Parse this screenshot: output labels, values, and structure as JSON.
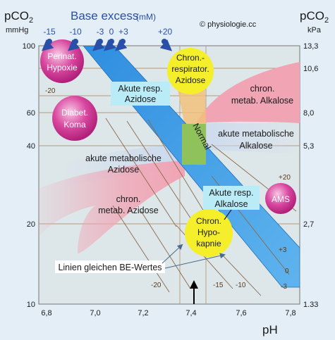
{
  "axes": {
    "left_title_pco2": "pCO",
    "left_title_sub": "2",
    "left_unit": "mmHg",
    "right_title_pco2": "pCO",
    "right_title_sub": "2",
    "right_unit": "kPa",
    "x_title": "pH",
    "left_ticks": [
      "100",
      "60",
      "40",
      "20",
      "10"
    ],
    "right_ticks": [
      "13,3",
      "10,6",
      "8,0",
      "5,3",
      "2,7",
      "1.33"
    ],
    "x_ticks": [
      "6,8",
      "7,0",
      "7,2",
      "7,4",
      "7,6",
      "7,8"
    ]
  },
  "header": {
    "base_excess_title": "Base excess",
    "base_excess_unit": "(mM)",
    "copyright": "© physiologie.cc",
    "be_top_values": [
      "-15",
      "-10",
      "-3",
      "0",
      "+3",
      "+20"
    ]
  },
  "regions": {
    "normal": "Normal",
    "acute_resp_acidosis_l1": "Akute resp.",
    "acute_resp_acidosis_l2": "Azidose",
    "chronic_resp_acidosis_l1": "Chron.-",
    "chronic_resp_acidosis_l2": "respirator.",
    "chronic_resp_acidosis_l3": "Azidose",
    "chronic_metab_alkalosis_l1": "chron.",
    "chronic_metab_alkalosis_l2": "metab. Alkalose",
    "acute_metab_alkalosis_l1": "akute metabolische",
    "acute_metab_alkalosis_l2": "Alkalose",
    "acute_metab_acidosis_l1": "akute metabolische",
    "acute_metab_acidosis_l2": "Azidose",
    "chronic_metab_acidosis_l1": "chron.",
    "chronic_metab_acidosis_l2": "metab. Azidose",
    "acute_resp_alkalosis_l1": "Akute resp.",
    "acute_resp_alkalosis_l2": "Alkalose",
    "chronic_resp_alkalosis_l1": "Chron.",
    "chronic_resp_alkalosis_l2": "Hypo-",
    "chronic_resp_alkalosis_l3": "kapnie"
  },
  "bubbles": {
    "perinat_l1": "Perinat.",
    "perinat_l2": "Hypoxie",
    "diabet_l1": "Diabet.",
    "diabet_l2": "Koma",
    "ams": "AMS"
  },
  "be_lines": {
    "caption": "Linien gleichen BE-Wertes",
    "labels": [
      "-20",
      "+20",
      "+3",
      "0",
      "-3",
      "-10",
      "-15",
      "-20"
    ]
  },
  "colors": {
    "background": "#e3eef7",
    "plot_bg": "#dde5e8",
    "acidosis_band": "#f3a8b6",
    "resp_band": "#4a9fe0",
    "normal_box": "#8fc25a",
    "yellow_bubble": "#f4ef2a",
    "magenta_bubble": "#d63c9a",
    "be_dot": "#2a4fa8",
    "title_blue": "#2a4fa8",
    "be_line": "#8a6a4a"
  }
}
